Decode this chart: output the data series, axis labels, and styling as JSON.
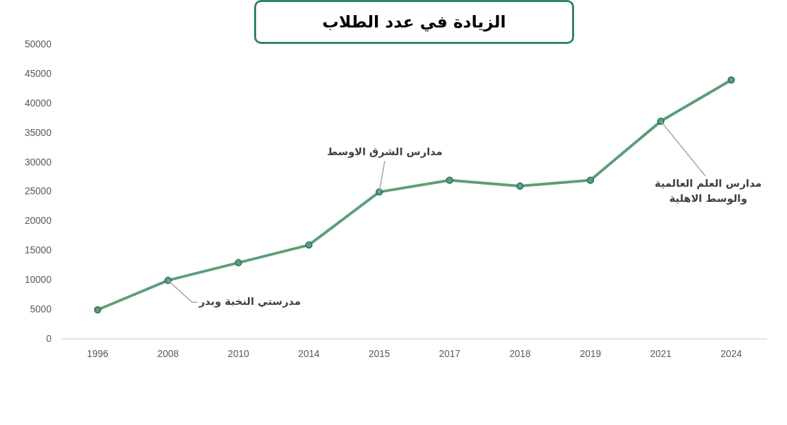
{
  "chart_data": {
    "type": "line",
    "title": "الزيادة في عدد الطلاب",
    "categories": [
      "1996",
      "2008",
      "2010",
      "2014",
      "2015",
      "2017",
      "2018",
      "2019",
      "2021",
      "2024"
    ],
    "series": [
      {
        "color": "#5b9f77",
        "values": [
          5000,
          10000,
          13000,
          16000,
          25000,
          27000,
          26000,
          27000,
          37000,
          44000
        ]
      }
    ],
    "ylim": [
      0,
      50000
    ],
    "yticks": [
      0,
      5000,
      10000,
      15000,
      20000,
      25000,
      30000,
      35000,
      40000,
      45000,
      50000
    ],
    "grid": false,
    "legend": false,
    "marker": "circle",
    "line_style": "solid",
    "annotations": [
      {
        "text": "مدرستي النخبة وبدر",
        "x": "2008",
        "y": 10000
      },
      {
        "text": "مدارس الشرق الاوسط",
        "x": "2015",
        "y": 25000
      },
      {
        "text": "مدارس العلم العالمية والوسط الاهلية",
        "x": "2021",
        "y": 37000
      }
    ]
  }
}
